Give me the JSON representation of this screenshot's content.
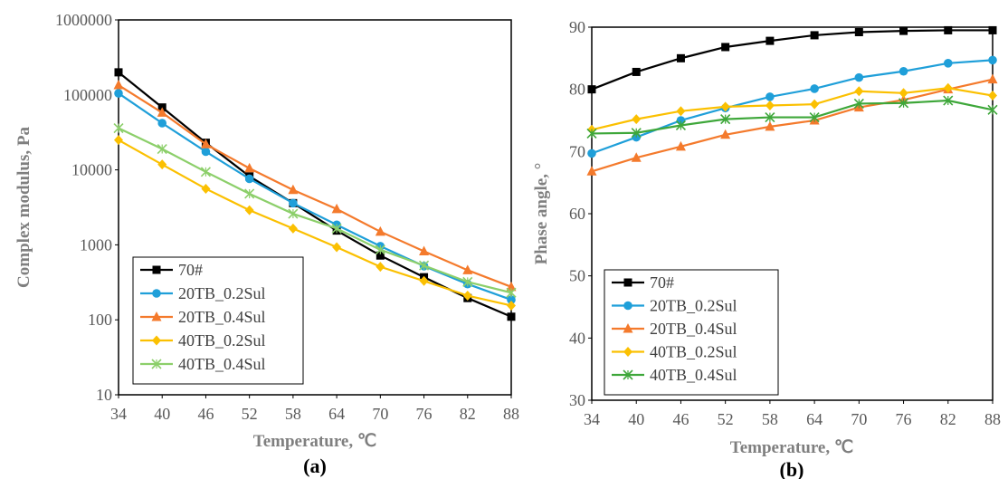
{
  "chart_data": [
    {
      "type": "line",
      "panel_label": "(a)",
      "xlabel": "Temperature, ℃",
      "ylabel": "Complex modulus, Pa",
      "yscale": "log",
      "ylim": [
        10,
        1000000
      ],
      "yticks": [
        "10",
        "100",
        "1000",
        "10000",
        "100000",
        "1000000"
      ],
      "x": [
        34,
        40,
        46,
        52,
        58,
        64,
        70,
        76,
        82,
        88
      ],
      "legend_position": "bottom-left",
      "grid": false,
      "series": [
        {
          "name": "70#",
          "color": "#000000",
          "marker": "square",
          "values": [
            200000,
            68000,
            23000,
            8200,
            3600,
            1550,
            720,
            370,
            195,
            110
          ]
        },
        {
          "name": "20TB_0.2Sul",
          "color": "#1f9fd9",
          "marker": "circle",
          "values": [
            105000,
            42000,
            17500,
            7600,
            3600,
            1850,
            960,
            520,
            300,
            185
          ]
        },
        {
          "name": "20TB_0.4Sul",
          "color": "#f47a2c",
          "marker": "triangle",
          "values": [
            135000,
            58000,
            22000,
            10500,
            5400,
            3000,
            1500,
            820,
            460,
            275
          ]
        },
        {
          "name": "40TB_0.2Sul",
          "color": "#fbc001",
          "marker": "diamond",
          "values": [
            25000,
            11800,
            5600,
            2900,
            1650,
            930,
            510,
            330,
            210,
            155
          ]
        },
        {
          "name": "40TB_0.4Sul",
          "color": "#8ccf6a",
          "marker": "x",
          "values": [
            36000,
            19000,
            9400,
            4800,
            2600,
            1650,
            860,
            530,
            320,
            230
          ]
        }
      ]
    },
    {
      "type": "line",
      "panel_label": "(b)",
      "xlabel": "Temperature, ℃",
      "ylabel": "Phase angle, °",
      "ylim": [
        30,
        90
      ],
      "yticks": [
        "30",
        "40",
        "50",
        "60",
        "70",
        "80",
        "90"
      ],
      "x": [
        34,
        40,
        46,
        52,
        58,
        64,
        70,
        76,
        82,
        88
      ],
      "legend_position": "bottom-left",
      "grid": false,
      "series": [
        {
          "name": "70#",
          "color": "#000000",
          "marker": "square",
          "values": [
            80.0,
            82.8,
            85.0,
            86.8,
            87.8,
            88.7,
            89.2,
            89.4,
            89.5,
            89.5
          ]
        },
        {
          "name": "20TB_0.2Sul",
          "color": "#1f9fd9",
          "marker": "circle",
          "values": [
            69.7,
            72.3,
            75.0,
            77.0,
            78.8,
            80.1,
            81.9,
            82.9,
            84.2,
            84.7
          ]
        },
        {
          "name": "20TB_0.4Sul",
          "color": "#f47a2c",
          "marker": "triangle",
          "values": [
            66.8,
            69.0,
            70.8,
            72.7,
            74.0,
            75.0,
            77.1,
            78.3,
            80.0,
            81.6
          ]
        },
        {
          "name": "40TB_0.2Sul",
          "color": "#fbc001",
          "marker": "diamond",
          "values": [
            73.5,
            75.2,
            76.5,
            77.2,
            77.4,
            77.6,
            79.7,
            79.4,
            80.2,
            79.0
          ]
        },
        {
          "name": "40TB_0.4Sul",
          "color": "#3ea73a",
          "marker": "x",
          "values": [
            72.9,
            73.0,
            74.2,
            75.2,
            75.5,
            75.5,
            77.7,
            77.8,
            78.2,
            76.7
          ]
        }
      ]
    }
  ]
}
